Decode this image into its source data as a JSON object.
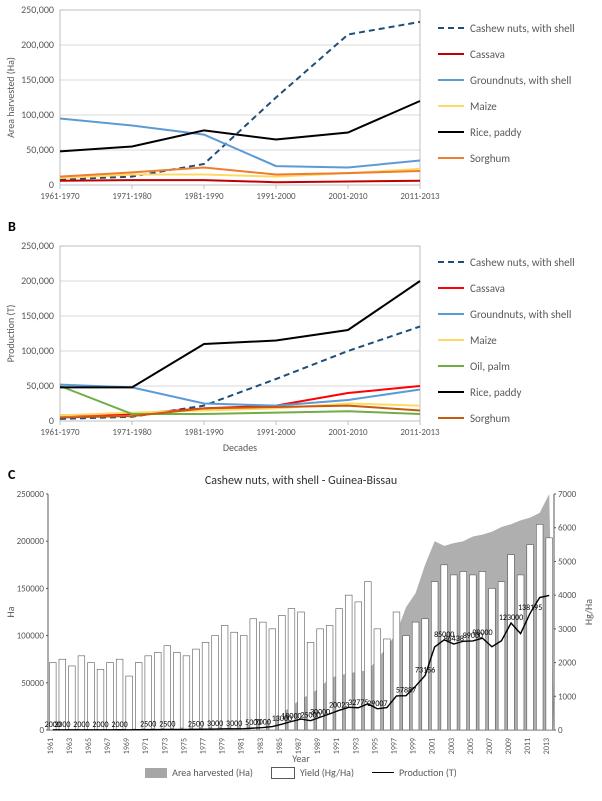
{
  "chartA": {
    "type": "line",
    "ylim": [
      0,
      250000
    ],
    "ytick_step": 50000,
    "ylabel": "Area harvested (Ha)",
    "categories": [
      "1961-1970",
      "1971-1980",
      "1981-1990",
      "1991-2000",
      "2001-2010",
      "2011-2013"
    ],
    "grid_color": "#d9d9d9",
    "background": "#ffffff",
    "axis_font": 10,
    "series": [
      {
        "name": "Cashew nuts, with shell",
        "color": "#1f4e79",
        "dash": "6,4",
        "values": [
          8000,
          12000,
          30000,
          125000,
          215000,
          233000
        ]
      },
      {
        "name": "Cassava",
        "color": "#c00000",
        "dash": "",
        "values": [
          6000,
          7000,
          7000,
          4000,
          5000,
          6000
        ]
      },
      {
        "name": "Groundnuts, with shell",
        "color": "#5b9bd5",
        "dash": "",
        "values": [
          95000,
          85000,
          72000,
          27000,
          25000,
          35000
        ]
      },
      {
        "name": "Maize",
        "color": "#ffd966",
        "dash": "",
        "values": [
          10000,
          15000,
          15000,
          12000,
          17000,
          23000
        ]
      },
      {
        "name": "Rice, paddy",
        "color": "#000000",
        "dash": "",
        "values": [
          48000,
          55000,
          78000,
          65000,
          75000,
          120000
        ]
      },
      {
        "name": "Sorghum",
        "color": "#ed7d31",
        "dash": "",
        "values": [
          12000,
          18000,
          25000,
          15000,
          17000,
          20000
        ]
      }
    ]
  },
  "chartB": {
    "panel_label": "B",
    "type": "line",
    "ylim": [
      0,
      250000
    ],
    "ytick_step": 50000,
    "ylabel": "Production (T)",
    "xlabel": "Decades",
    "categories": [
      "1961-1970",
      "1971-1980",
      "1981-1990",
      "1991-2000",
      "2001-2010",
      "2011-2013"
    ],
    "grid_color": "#d9d9d9",
    "background": "#ffffff",
    "axis_font": 10,
    "series": [
      {
        "name": "Cashew nuts, with shell",
        "color": "#1f4e79",
        "dash": "6,4",
        "values": [
          3000,
          6000,
          22000,
          60000,
          100000,
          135000
        ]
      },
      {
        "name": "Cassava",
        "color": "#ff0000",
        "dash": "",
        "values": [
          8000,
          10000,
          18000,
          22000,
          40000,
          50000
        ]
      },
      {
        "name": "Groundnuts, with shell",
        "color": "#5b9bd5",
        "dash": "",
        "values": [
          52000,
          48000,
          25000,
          22000,
          30000,
          45000
        ]
      },
      {
        "name": "Maize",
        "color": "#ffd966",
        "dash": "",
        "values": [
          8000,
          12000,
          15000,
          18000,
          25000,
          22000
        ]
      },
      {
        "name": "Oil, palm",
        "color": "#70ad47",
        "dash": "",
        "values": [
          50000,
          10000,
          10000,
          12000,
          14000,
          10000
        ]
      },
      {
        "name": "Rice, paddy",
        "color": "#000000",
        "dash": "",
        "values": [
          48000,
          48000,
          110000,
          115000,
          130000,
          200000
        ]
      },
      {
        "name": "Sorghum",
        "color": "#c55a11",
        "dash": "",
        "values": [
          5000,
          7000,
          18000,
          20000,
          22000,
          15000
        ]
      }
    ]
  },
  "chartC": {
    "panel_label": "C",
    "title": "Cashew nuts, with shell - Guinea-Bissau",
    "type": "combo",
    "xlabel": "Year",
    "ylabel_left": "Ha",
    "ylabel_right": "Hg/Ha",
    "ylim_left": [
      0,
      250000
    ],
    "ytick_left": 50000,
    "ylim_right": [
      0,
      7000
    ],
    "ytick_right": 1000,
    "area": {
      "name": "Area harvested (Ha)",
      "color": "#a6a6a6",
      "values": [
        1000,
        1000,
        1000,
        1000,
        1000,
        1000,
        1000,
        1200,
        1300,
        1600,
        1800,
        2000,
        2200,
        2500,
        2700,
        3000,
        3300,
        3600,
        3900,
        4200,
        5000,
        6000,
        8000,
        12000,
        18000,
        25000,
        33000,
        38000,
        45000,
        55000,
        58000,
        60000,
        62000,
        63000,
        75000,
        88000,
        103000,
        130000,
        145000,
        175000,
        200000,
        195000,
        198000,
        200000,
        205000,
        207000,
        210000,
        215000,
        218000,
        222000,
        225000,
        230000,
        250000
      ]
    },
    "bars": {
      "name": "Yield (Hg/Ha)",
      "color": "#ffffff",
      "border": "#595959",
      "values": [
        2000,
        2100,
        1900,
        2200,
        2000,
        1800,
        2000,
        2100,
        1600,
        2000,
        2200,
        2300,
        2500,
        2300,
        2200,
        2400,
        2600,
        2800,
        3100,
        2900,
        2800,
        3300,
        3200,
        3000,
        3400,
        3600,
        3500,
        2600,
        3000,
        3100,
        3600,
        4000,
        3800,
        4400,
        3000,
        2700,
        3500,
        2800,
        3200,
        3300,
        4400,
        4900,
        4600,
        4700,
        4600,
        4700,
        4200,
        4400,
        5200,
        4600,
        5500,
        6100,
        5700
      ]
    },
    "line": {
      "name": "Production (T)",
      "color": "#000000",
      "values": [
        200,
        210,
        190,
        220,
        200,
        180,
        200,
        252,
        208,
        320,
        396,
        460,
        550,
        575,
        594,
        720,
        858,
        1008,
        1209,
        1218,
        1400,
        1980,
        2560,
        3600,
        6120,
        9000,
        11550,
        9880,
        13500,
        17050,
        20880,
        24000,
        23560,
        27720,
        22500,
        23760,
        36050,
        36400,
        46400,
        57750,
        88000,
        95550,
        91080,
        94000,
        94300,
        97290,
        88200,
        94600,
        113360,
        102120,
        123750,
        140300,
        142500
      ]
    },
    "data_labels": [
      {
        "x": 0,
        "text": "2000"
      },
      {
        "x": 1,
        "text": "2000"
      },
      {
        "x": 3,
        "text": "2000"
      },
      {
        "x": 5,
        "text": "2000"
      },
      {
        "x": 7,
        "text": "2000"
      },
      {
        "x": 10,
        "text": "2500"
      },
      {
        "x": 12,
        "text": "2500"
      },
      {
        "x": 15,
        "text": "2500"
      },
      {
        "x": 17,
        "text": "3000"
      },
      {
        "x": 19,
        "text": "3000"
      },
      {
        "x": 21,
        "text": "5000"
      },
      {
        "x": 22,
        "text": "7000"
      },
      {
        "x": 24,
        "text": "13000"
      },
      {
        "x": 25,
        "text": "18000"
      },
      {
        "x": 27,
        "text": "25000"
      },
      {
        "x": 28,
        "text": "30000"
      },
      {
        "x": 30,
        "text": "20023"
      },
      {
        "x": 32,
        "text": "32775"
      },
      {
        "x": 34,
        "text": "29007"
      },
      {
        "x": 37,
        "text": "57887"
      },
      {
        "x": 39,
        "text": "73156"
      },
      {
        "x": 41,
        "text": "85000"
      },
      {
        "x": 42,
        "text": "86438"
      },
      {
        "x": 44,
        "text": "89000"
      },
      {
        "x": 45,
        "text": "98000"
      },
      {
        "x": 48,
        "text": "123000"
      },
      {
        "x": 50,
        "text": "138195"
      }
    ],
    "years": [
      1961,
      1962,
      1963,
      1964,
      1965,
      1966,
      1967,
      1968,
      1969,
      1970,
      1971,
      1972,
      1973,
      1974,
      1975,
      1976,
      1977,
      1978,
      1979,
      1980,
      1981,
      1982,
      1983,
      1984,
      1985,
      1986,
      1987,
      1988,
      1989,
      1990,
      1991,
      1992,
      1993,
      1994,
      1995,
      1996,
      1997,
      1998,
      1999,
      2000,
      2001,
      2002,
      2003,
      2004,
      2005,
      2006,
      2007,
      2008,
      2009,
      2010,
      2011,
      2012,
      2013
    ],
    "legend": {
      "area": "Area harvested (Ha)",
      "bar": "Yield (Hg/Ha)",
      "line": "Production (T)"
    }
  }
}
